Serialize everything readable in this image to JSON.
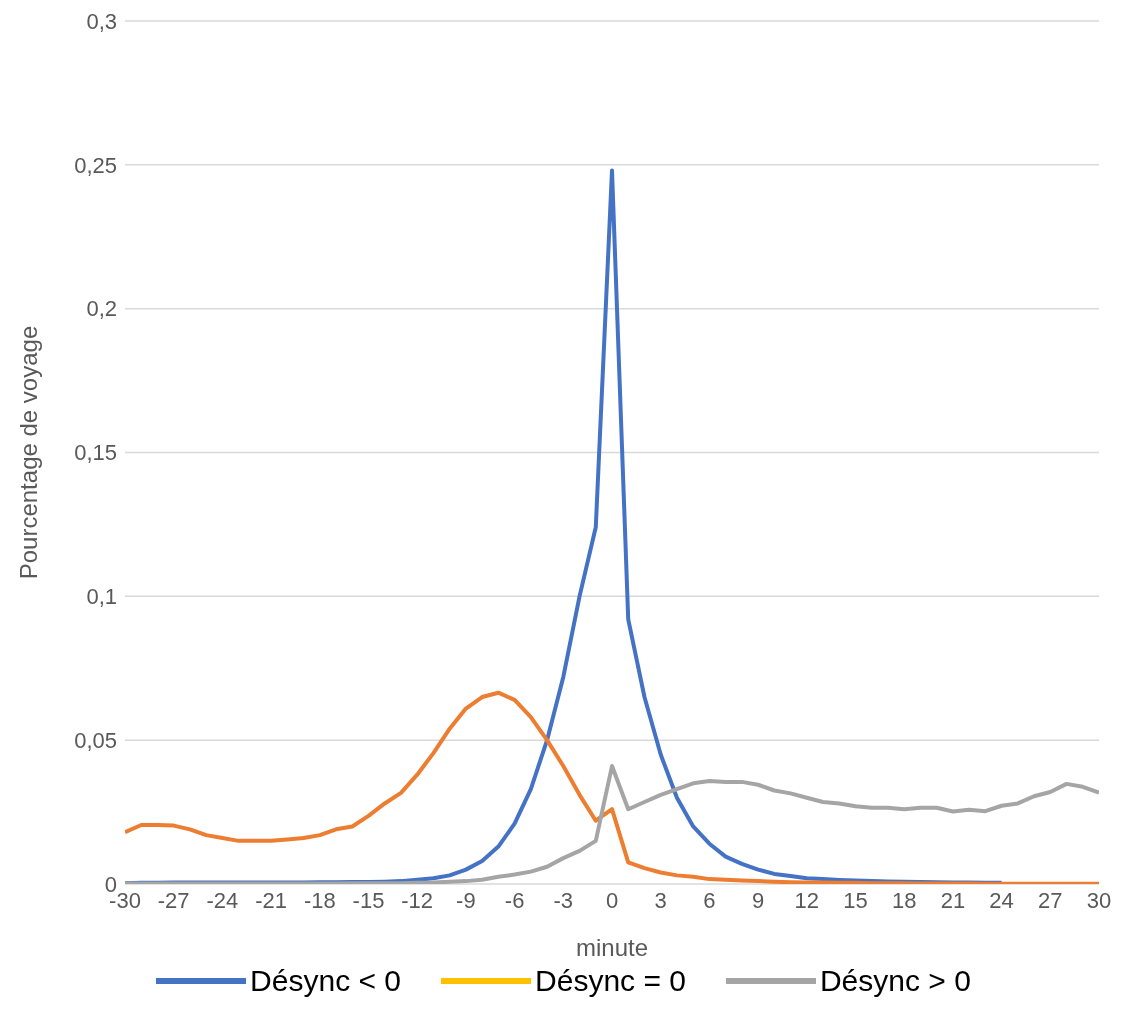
{
  "chart_data": {
    "type": "line",
    "xlabel": "minute",
    "ylabel": "Pourcentage de voyage",
    "x": [
      -30,
      -29,
      -28,
      -27,
      -26,
      -25,
      -24,
      -23,
      -22,
      -21,
      -20,
      -19,
      -18,
      -17,
      -16,
      -15,
      -14,
      -13,
      -12,
      -11,
      -10,
      -9,
      -8,
      -7,
      -6,
      -5,
      -4,
      -3,
      -2,
      -1,
      0,
      1,
      2,
      3,
      4,
      5,
      6,
      7,
      8,
      9,
      10,
      11,
      12,
      13,
      14,
      15,
      16,
      17,
      18,
      19,
      20,
      21,
      22,
      23,
      24,
      25,
      26,
      27,
      28,
      29,
      30
    ],
    "series": [
      {
        "name": "Désync < 0",
        "color": "#4472c4",
        "values": [
          0.0003,
          0.0004,
          0.0004,
          0.0005,
          0.0005,
          0.0005,
          0.0005,
          0.0005,
          0.0005,
          0.0005,
          0.0005,
          0.0005,
          0.0006,
          0.0006,
          0.0007,
          0.0007,
          0.0008,
          0.001,
          0.0015,
          0.002,
          0.003,
          0.005,
          0.008,
          0.013,
          0.021,
          0.033,
          0.05,
          0.072,
          0.1,
          0.124,
          0.248,
          0.092,
          0.065,
          0.045,
          0.03,
          0.02,
          0.014,
          0.0095,
          0.007,
          0.005,
          0.0035,
          0.0028,
          0.002,
          0.0017,
          0.0014,
          0.0012,
          0.001,
          0.0009,
          0.0008,
          0.0007,
          0.0006,
          0.0005,
          0.0005,
          0.0004,
          0.0004,
          null,
          null,
          null,
          null,
          null,
          null
        ]
      },
      {
        "color": "#ed7d31",
        "values": [
          0.018,
          0.0205,
          0.0205,
          0.0203,
          0.019,
          0.017,
          0.016,
          0.015,
          0.015,
          0.015,
          0.0155,
          0.016,
          0.017,
          0.019,
          0.02,
          0.0237,
          0.028,
          0.0317,
          0.038,
          0.0455,
          0.054,
          0.061,
          0.065,
          0.0665,
          0.064,
          0.058,
          0.05,
          0.041,
          0.031,
          0.022,
          0.026,
          0.0075,
          0.0055,
          0.004,
          0.003,
          0.0025,
          0.0017,
          0.0015,
          0.0012,
          0.001,
          0.0008,
          0.0006,
          0.0005,
          0.0005,
          0.0004,
          0.0004,
          0.0003,
          0.0003,
          0.0003,
          0.0002,
          0.0002,
          0.0002,
          0.0002,
          0.0001,
          0.0001,
          0.0001,
          0.0001,
          0.0001,
          0.0001,
          0.0001,
          0.0001
        ]
      },
      {
        "name": "Désync = 0",
        "color": "#ffc000",
        "values": [
          null,
          null,
          null,
          null,
          null,
          null,
          null,
          null,
          null,
          null,
          null,
          null,
          null,
          null,
          null,
          null,
          null,
          null,
          null,
          null,
          null,
          null,
          null,
          null,
          null,
          null,
          null,
          null,
          null,
          null,
          null,
          null,
          null,
          null,
          null,
          null,
          null,
          null,
          null,
          null,
          null,
          null,
          null,
          null,
          null,
          null,
          null,
          null,
          null,
          null,
          null,
          null,
          null,
          null,
          null,
          null,
          null,
          null,
          null,
          null,
          null
        ]
      },
      {
        "name": "Désync > 0",
        "color": "#a5a5a5",
        "values": [
          0.0002,
          0.0002,
          0.0002,
          0.0002,
          0.0002,
          0.0002,
          0.0002,
          0.0002,
          0.0002,
          0.0002,
          0.0002,
          0.0002,
          0.0002,
          0.0002,
          0.0003,
          0.0003,
          0.0003,
          0.0003,
          0.0004,
          0.0005,
          0.0008,
          0.001,
          0.0015,
          0.0025,
          0.0033,
          0.0043,
          0.006,
          0.009,
          0.0115,
          0.015,
          0.041,
          0.026,
          0.0285,
          0.031,
          0.033,
          0.035,
          0.0358,
          0.0355,
          0.0355,
          0.0345,
          0.0325,
          0.0315,
          0.03,
          0.0285,
          0.028,
          0.027,
          0.0265,
          0.0265,
          0.026,
          0.0265,
          0.0265,
          0.0252,
          0.0258,
          0.0253,
          0.0272,
          0.028,
          0.0305,
          0.032,
          0.0348,
          0.0338,
          0.0318
        ]
      }
    ],
    "xlim": [
      -30,
      30
    ],
    "xticks": [
      -30,
      -27,
      -24,
      -21,
      -18,
      -15,
      -12,
      -9,
      -6,
      -3,
      0,
      3,
      6,
      9,
      12,
      15,
      18,
      21,
      24,
      27,
      30
    ],
    "ylim": [
      0,
      0.3
    ],
    "yticks": [
      0,
      {
        "value": 0.05,
        "label": "0,05"
      },
      {
        "value": 0.1,
        "label": "0,1"
      },
      {
        "value": 0.15,
        "label": "0,15"
      },
      {
        "value": 0.2,
        "label": "0,2"
      },
      {
        "value": 0.25,
        "label": "0,25"
      },
      {
        "value": 0.3,
        "label": "0,3"
      }
    ],
    "grid": "y",
    "legend": "bottom",
    "marker": "none",
    "line_style": "solid"
  }
}
